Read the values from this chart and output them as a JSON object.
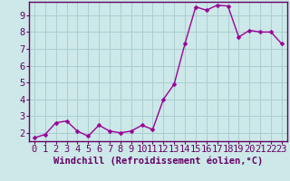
{
  "x": [
    0,
    1,
    2,
    3,
    4,
    5,
    6,
    7,
    8,
    9,
    10,
    11,
    12,
    13,
    14,
    15,
    16,
    17,
    18,
    19,
    20,
    21,
    22,
    23
  ],
  "y": [
    1.7,
    1.9,
    2.6,
    2.7,
    2.1,
    1.8,
    2.45,
    2.1,
    2.0,
    2.1,
    2.45,
    2.2,
    4.0,
    4.9,
    7.3,
    9.5,
    9.3,
    9.6,
    9.55,
    7.7,
    8.1,
    8.0,
    8.0,
    7.3
  ],
  "line_color": "#990099",
  "marker_color": "#990099",
  "background_color": "#cce8e8",
  "grid_color": "#aacece",
  "axis_color": "#660066",
  "spine_color": "#660066",
  "xlabel": "Windchill (Refroidissement éolien,°C)",
  "ylim": [
    1.5,
    9.8
  ],
  "xlim": [
    -0.5,
    23.5
  ],
  "yticks": [
    2,
    3,
    4,
    5,
    6,
    7,
    8,
    9
  ],
  "xticks": [
    0,
    1,
    2,
    3,
    4,
    5,
    6,
    7,
    8,
    9,
    10,
    11,
    12,
    13,
    14,
    15,
    16,
    17,
    18,
    19,
    20,
    21,
    22,
    23
  ],
  "xlabel_fontsize": 7.5,
  "tick_fontsize": 7.5,
  "line_width": 1.0,
  "marker_size": 2.5
}
